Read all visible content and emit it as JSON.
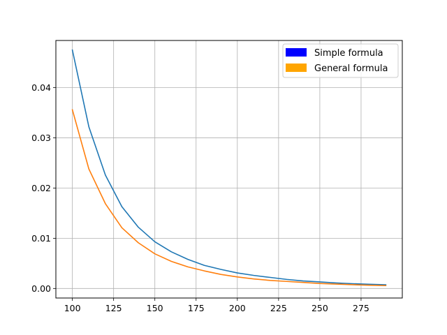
{
  "chart_data": {
    "type": "line",
    "title": "",
    "xlabel": "",
    "ylabel": "",
    "xlim": [
      90,
      300
    ],
    "ylim": [
      -0.0019,
      0.0494
    ],
    "x_ticks": [
      "100",
      "125",
      "150",
      "175",
      "200",
      "225",
      "250",
      "275"
    ],
    "y_ticks": [
      "0.00",
      "0.01",
      "0.02",
      "0.03",
      "0.04"
    ],
    "grid": true,
    "legend_position": "top-right",
    "x": [
      100,
      110,
      120,
      130,
      140,
      150,
      160,
      170,
      180,
      190,
      200,
      210,
      220,
      230,
      240,
      250,
      260,
      270,
      280,
      290
    ],
    "series": [
      {
        "name": "Simple formula",
        "line_color": "#1f77b4",
        "legend_color": "#0000ff",
        "values": [
          0.0475,
          0.0322,
          0.0226,
          0.0163,
          0.0122,
          0.0093,
          0.0073,
          0.0058,
          0.0046,
          0.0038,
          0.0031,
          0.0026,
          0.0022,
          0.0018,
          0.0015,
          0.0013,
          0.0011,
          0.00095,
          0.00083,
          0.00073
        ]
      },
      {
        "name": "General formula",
        "line_color": "#ff7f0e",
        "legend_color": "#ffa500",
        "values": [
          0.0356,
          0.0238,
          0.0169,
          0.0121,
          0.0091,
          0.0069,
          0.0054,
          0.0043,
          0.0035,
          0.0028,
          0.0023,
          0.0019,
          0.0016,
          0.0014,
          0.0012,
          0.001,
          0.00087,
          0.00075,
          0.00065,
          0.00057
        ]
      }
    ]
  }
}
